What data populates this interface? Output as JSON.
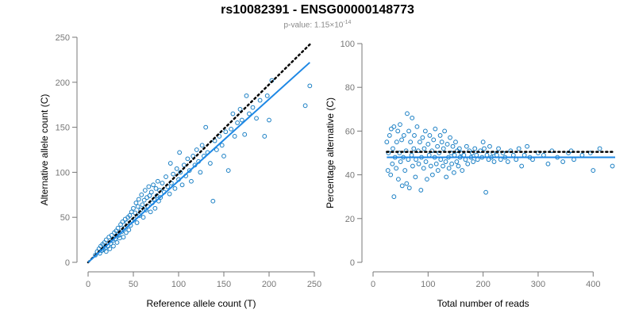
{
  "header": {
    "title": "rs10082391 - ENSG00000148773",
    "subtitle_prefix": "p-value: 1.15×10",
    "subtitle_exponent": "-14"
  },
  "colors": {
    "points": "#1a7fc4",
    "fit": "#1e88e5",
    "reference": "#000000"
  },
  "chart_data": [
    {
      "type": "scatter",
      "title": "",
      "xlabel": "Reference allele count (T)",
      "ylabel": "Alternative allele count (C)",
      "xlim": [
        0,
        250
      ],
      "ylim": [
        0,
        250
      ],
      "xticks": [
        0,
        50,
        100,
        150,
        200,
        250
      ],
      "yticks": [
        0,
        50,
        100,
        150,
        200,
        250
      ],
      "reference_line": {
        "style": "dotted",
        "x": [
          0,
          245
        ],
        "y": [
          0,
          242
        ]
      },
      "fit_line": {
        "style": "solid",
        "x": [
          0,
          245
        ],
        "y": [
          0,
          222
        ]
      },
      "points": [
        [
          8,
          8
        ],
        [
          10,
          12
        ],
        [
          12,
          15
        ],
        [
          13,
          10
        ],
        [
          14,
          18
        ],
        [
          15,
          13
        ],
        [
          16,
          20
        ],
        [
          17,
          14
        ],
        [
          18,
          22
        ],
        [
          19,
          16
        ],
        [
          20,
          12
        ],
        [
          20,
          25
        ],
        [
          22,
          18
        ],
        [
          23,
          28
        ],
        [
          24,
          15
        ],
        [
          25,
          21
        ],
        [
          26,
          30
        ],
        [
          27,
          24
        ],
        [
          28,
          18
        ],
        [
          29,
          33
        ],
        [
          30,
          26
        ],
        [
          31,
          35
        ],
        [
          32,
          22
        ],
        [
          33,
          38
        ],
        [
          34,
          30
        ],
        [
          35,
          27
        ],
        [
          36,
          42
        ],
        [
          37,
          34
        ],
        [
          38,
          45
        ],
        [
          39,
          28
        ],
        [
          40,
          38
        ],
        [
          41,
          48
        ],
        [
          42,
          33
        ],
        [
          43,
          44
        ],
        [
          44,
          50
        ],
        [
          45,
          36
        ],
        [
          46,
          52
        ],
        [
          47,
          41
        ],
        [
          48,
          56
        ],
        [
          49,
          46
        ],
        [
          50,
          60
        ],
        [
          51,
          48
        ],
        [
          52,
          55
        ],
        [
          53,
          66
        ],
        [
          54,
          44
        ],
        [
          55,
          62
        ],
        [
          56,
          70
        ],
        [
          57,
          52
        ],
        [
          58,
          58
        ],
        [
          59,
          75
        ],
        [
          60,
          64
        ],
        [
          61,
          50
        ],
        [
          62,
          69
        ],
        [
          63,
          80
        ],
        [
          64,
          58
        ],
        [
          65,
          72
        ],
        [
          66,
          62
        ],
        [
          67,
          84
        ],
        [
          68,
          74
        ],
        [
          69,
          56
        ],
        [
          70,
          78
        ],
        [
          71,
          66
        ],
        [
          72,
          86
        ],
        [
          73,
          70
        ],
        [
          74,
          60
        ],
        [
          75,
          82
        ],
        [
          76,
          74
        ],
        [
          77,
          90
        ],
        [
          78,
          68
        ],
        [
          79,
          80
        ],
        [
          80,
          72
        ],
        [
          82,
          88
        ],
        [
          84,
          78
        ],
        [
          86,
          95
        ],
        [
          88,
          84
        ],
        [
          90,
          76
        ],
        [
          91,
          110
        ],
        [
          92,
          88
        ],
        [
          94,
          98
        ],
        [
          96,
          82
        ],
        [
          98,
          104
        ],
        [
          100,
          92
        ],
        [
          101,
          122
        ],
        [
          102,
          100
        ],
        [
          104,
          86
        ],
        [
          106,
          108
        ],
        [
          108,
          96
        ],
        [
          110,
          115
        ],
        [
          112,
          102
        ],
        [
          114,
          90
        ],
        [
          116,
          118
        ],
        [
          118,
          108
        ],
        [
          120,
          125
        ],
        [
          122,
          112
        ],
        [
          124,
          100
        ],
        [
          126,
          130
        ],
        [
          128,
          118
        ],
        [
          130,
          150
        ],
        [
          132,
          122
        ],
        [
          135,
          110
        ],
        [
          138,
          68
        ],
        [
          140,
          135
        ],
        [
          142,
          125
        ],
        [
          145,
          140
        ],
        [
          148,
          130
        ],
        [
          150,
          118
        ],
        [
          152,
          145
        ],
        [
          155,
          102
        ],
        [
          158,
          148
        ],
        [
          160,
          165
        ],
        [
          162,
          140
        ],
        [
          165,
          155
        ],
        [
          168,
          170
        ],
        [
          170,
          158
        ],
        [
          173,
          142
        ],
        [
          175,
          185
        ],
        [
          178,
          165
        ],
        [
          182,
          172
        ],
        [
          186,
          160
        ],
        [
          190,
          180
        ],
        [
          195,
          140
        ],
        [
          198,
          185
        ],
        [
          200,
          158
        ],
        [
          203,
          202
        ],
        [
          240,
          174
        ],
        [
          245,
          196
        ]
      ]
    },
    {
      "type": "scatter",
      "title": "",
      "xlabel": "Total number of reads",
      "ylabel": "Percentage alternative (C)",
      "xlim": [
        0,
        440
      ],
      "ylim": [
        0,
        100
      ],
      "xticks": [
        0,
        100,
        200,
        300,
        400
      ],
      "yticks": [
        0,
        20,
        40,
        60,
        80,
        100
      ],
      "reference_line": {
        "style": "dotted",
        "y": 50.5,
        "x": [
          25,
          440
        ]
      },
      "fit_line": {
        "style": "solid",
        "y": 48,
        "x": [
          25,
          440
        ]
      },
      "points": [
        [
          25,
          55
        ],
        [
          27,
          42
        ],
        [
          28,
          50
        ],
        [
          30,
          58
        ],
        [
          32,
          40
        ],
        [
          33,
          61
        ],
        [
          35,
          45
        ],
        [
          36,
          52
        ],
        [
          38,
          30
        ],
        [
          38,
          62
        ],
        [
          40,
          48
        ],
        [
          42,
          43
        ],
        [
          43,
          55
        ],
        [
          45,
          60
        ],
        [
          46,
          38
        ],
        [
          48,
          50
        ],
        [
          49,
          63
        ],
        [
          50,
          46
        ],
        [
          52,
          56
        ],
        [
          53,
          35
        ],
        [
          55,
          48
        ],
        [
          56,
          58
        ],
        [
          58,
          42
        ],
        [
          60,
          51
        ],
        [
          61,
          36
        ],
        [
          62,
          68
        ],
        [
          64,
          47
        ],
        [
          65,
          60
        ],
        [
          66,
          34
        ],
        [
          68,
          55
        ],
        [
          70,
          49
        ],
        [
          71,
          66
        ],
        [
          72,
          44
        ],
        [
          74,
          52
        ],
        [
          75,
          58
        ],
        [
          77,
          39
        ],
        [
          78,
          47
        ],
        [
          80,
          62
        ],
        [
          82,
          51
        ],
        [
          83,
          45
        ],
        [
          85,
          55
        ],
        [
          87,
          33
        ],
        [
          88,
          48
        ],
        [
          90,
          57
        ],
        [
          92,
          43
        ],
        [
          93,
          52
        ],
        [
          95,
          60
        ],
        [
          96,
          46
        ],
        [
          98,
          38
        ],
        [
          100,
          54
        ],
        [
          102,
          49
        ],
        [
          103,
          58
        ],
        [
          105,
          44
        ],
        [
          107,
          51
        ],
        [
          108,
          40
        ],
        [
          110,
          56
        ],
        [
          112,
          48
        ],
        [
          113,
          61
        ],
        [
          115,
          45
        ],
        [
          117,
          53
        ],
        [
          118,
          42
        ],
        [
          120,
          50
        ],
        [
          122,
          58
        ],
        [
          123,
          47
        ],
        [
          125,
          55
        ],
        [
          127,
          44
        ],
        [
          128,
          52
        ],
        [
          130,
          60
        ],
        [
          132,
          46
        ],
        [
          133,
          39
        ],
        [
          135,
          54
        ],
        [
          137,
          48
        ],
        [
          138,
          43
        ],
        [
          140,
          57
        ],
        [
          142,
          50
        ],
        [
          143,
          45
        ],
        [
          145,
          53
        ],
        [
          147,
          41
        ],
        [
          148,
          49
        ],
        [
          150,
          55
        ],
        [
          152,
          46
        ],
        [
          153,
          51
        ],
        [
          155,
          44
        ],
        [
          157,
          52
        ],
        [
          158,
          48
        ],
        [
          160,
          50
        ],
        [
          162,
          42
        ],
        [
          165,
          49
        ],
        [
          168,
          47
        ],
        [
          170,
          53
        ],
        [
          172,
          45
        ],
        [
          175,
          51
        ],
        [
          178,
          48
        ],
        [
          180,
          50
        ],
        [
          182,
          46
        ],
        [
          185,
          52
        ],
        [
          188,
          49
        ],
        [
          190,
          47
        ],
        [
          195,
          51
        ],
        [
          198,
          48
        ],
        [
          200,
          55
        ],
        [
          202,
          52
        ],
        [
          205,
          32
        ],
        [
          207,
          49
        ],
        [
          210,
          47
        ],
        [
          212,
          53
        ],
        [
          215,
          48
        ],
        [
          218,
          50
        ],
        [
          220,
          46
        ],
        [
          225,
          49
        ],
        [
          228,
          52
        ],
        [
          232,
          47
        ],
        [
          236,
          50
        ],
        [
          240,
          48
        ],
        [
          245,
          46
        ],
        [
          250,
          51
        ],
        [
          255,
          49
        ],
        [
          260,
          47
        ],
        [
          265,
          52
        ],
        [
          270,
          44
        ],
        [
          275,
          49
        ],
        [
          280,
          53
        ],
        [
          285,
          48
        ],
        [
          290,
          47
        ],
        [
          300,
          50
        ],
        [
          310,
          49
        ],
        [
          318,
          45
        ],
        [
          325,
          51
        ],
        [
          335,
          48
        ],
        [
          345,
          46
        ],
        [
          355,
          50
        ],
        [
          360,
          51
        ],
        [
          365,
          47
        ],
        [
          380,
          49
        ],
        [
          395,
          50
        ],
        [
          400,
          42
        ],
        [
          412,
          52
        ],
        [
          435,
          44
        ]
      ]
    }
  ]
}
